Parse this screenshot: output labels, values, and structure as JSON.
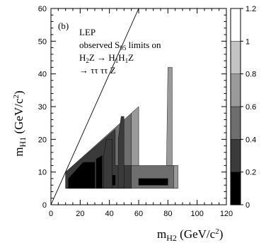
{
  "chart_data": {
    "type": "heatmap",
    "panel_label": "(b)",
    "annotation_lines": [
      "LEP",
      "observed S95 limits on",
      "H2Z → H1H1Z",
      "→ ττ ττ Z"
    ],
    "xlabel": "mH2 (GeV/c2)",
    "ylabel": "mH1 (GeV/c2)",
    "xlim": [
      0,
      120
    ],
    "ylim": [
      0,
      60
    ],
    "x_ticks": [
      0,
      20,
      40,
      60,
      80,
      100,
      120
    ],
    "y_ticks": [
      0,
      10,
      20,
      30,
      40,
      50,
      60
    ],
    "colorbar": {
      "min": 0,
      "max": 1.2,
      "ticks": [
        0,
        0.2,
        0.4,
        0.6,
        0.8,
        1,
        1.2
      ],
      "levels": [
        {
          "range": [
            0,
            0.2
          ],
          "color": "#000000"
        },
        {
          "range": [
            0.2,
            0.4
          ],
          "color": "#3a3a3a"
        },
        {
          "range": [
            0.4,
            0.6
          ],
          "color": "#6e6e6e"
        },
        {
          "range": [
            0.6,
            0.8
          ],
          "color": "#9a9a9a"
        },
        {
          "range": [
            0.8,
            1.0
          ],
          "color": "#c4c4c4"
        },
        {
          "range": [
            1.0,
            1.2
          ],
          "color": "#ffffff"
        }
      ]
    },
    "kinematic_boundary": "mH1 = mH2",
    "regions": [
      {
        "level": 0.5,
        "polygon": [
          [
            10,
            5
          ],
          [
            86,
            5
          ],
          [
            86,
            12
          ],
          [
            60,
            12
          ],
          [
            60,
            30
          ],
          [
            10,
            10
          ]
        ]
      },
      {
        "level": 0.7,
        "polygon": [
          [
            55,
            12
          ],
          [
            60,
            12
          ],
          [
            60,
            30
          ],
          [
            55,
            28
          ]
        ]
      },
      {
        "level": 0.7,
        "polygon": [
          [
            79,
            12
          ],
          [
            83,
            12
          ],
          [
            83,
            42
          ],
          [
            80,
            42
          ]
        ]
      },
      {
        "level": 0.7,
        "polygon": [
          [
            84,
            5
          ],
          [
            87,
            5
          ],
          [
            87,
            12
          ],
          [
            84,
            12
          ]
        ]
      },
      {
        "level": 0.7,
        "polygon": [
          [
            36,
            11
          ],
          [
            40,
            11
          ],
          [
            40,
            18
          ],
          [
            36,
            16
          ]
        ]
      },
      {
        "level": 0.3,
        "polygon": [
          [
            10,
            5
          ],
          [
            55,
            5
          ],
          [
            55,
            12
          ],
          [
            44,
            12
          ],
          [
            44,
            23
          ],
          [
            10,
            10
          ]
        ]
      },
      {
        "level": 0.3,
        "polygon": [
          [
            36,
            5
          ],
          [
            42,
            5
          ],
          [
            42,
            20
          ],
          [
            38,
            20
          ],
          [
            36,
            15
          ]
        ]
      },
      {
        "level": 0.3,
        "polygon": [
          [
            46,
            5
          ],
          [
            50,
            5
          ],
          [
            50,
            27
          ],
          [
            48,
            27
          ],
          [
            46,
            20
          ]
        ]
      },
      {
        "level": 0.1,
        "polygon": [
          [
            12,
            5
          ],
          [
            30,
            5
          ],
          [
            30,
            13
          ],
          [
            22,
            13
          ],
          [
            12,
            8
          ]
        ]
      },
      {
        "level": 0.1,
        "polygon": [
          [
            31,
            5
          ],
          [
            35,
            5
          ],
          [
            35,
            15
          ],
          [
            31,
            14
          ]
        ]
      },
      {
        "level": 0.1,
        "polygon": [
          [
            42,
            6
          ],
          [
            44,
            6
          ],
          [
            44,
            9
          ],
          [
            42,
            9
          ]
        ]
      },
      {
        "level": 0.1,
        "polygon": [
          [
            60,
            6
          ],
          [
            80,
            6
          ],
          [
            80,
            8
          ],
          [
            60,
            8
          ]
        ]
      }
    ]
  }
}
